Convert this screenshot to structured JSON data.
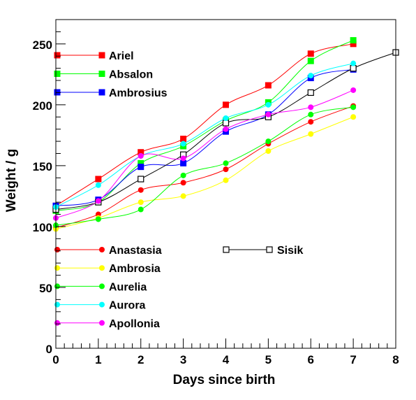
{
  "chart_data": {
    "type": "line",
    "xlabel": "Days since birth",
    "ylabel": "Weight / g",
    "xlim": [
      0,
      8
    ],
    "ylim": [
      0,
      270
    ],
    "x_ticks": [
      0,
      1,
      2,
      3,
      4,
      5,
      6,
      7,
      8
    ],
    "y_ticks": [
      0,
      50,
      100,
      150,
      200,
      250
    ],
    "grid": false,
    "curves": "smooth",
    "legends": [
      {
        "placement": "upper-left",
        "entries": [
          "Ariel",
          "Absalon",
          "Ambrosius"
        ]
      },
      {
        "placement": "lower-left",
        "entries": [
          "Anastasia",
          "Ambrosia",
          "Aurelia",
          "Aurora",
          "Apollonia"
        ]
      },
      {
        "placement": "lower-center",
        "entries": [
          "Sisik"
        ]
      }
    ],
    "series": [
      {
        "name": "Ariel",
        "color": "#ff0000",
        "marker": "square",
        "x": [
          0,
          1,
          2,
          3,
          4,
          5,
          6,
          7
        ],
        "values": [
          117,
          139,
          161,
          172,
          200,
          216,
          242,
          250
        ]
      },
      {
        "name": "Absalon",
        "color": "#00ff00",
        "marker": "square",
        "x": [
          0,
          1,
          2,
          3,
          4,
          5,
          6,
          7
        ],
        "values": [
          113,
          120,
          152,
          166,
          187,
          202,
          236,
          253
        ]
      },
      {
        "name": "Ambrosius",
        "color": "#0000ff",
        "marker": "square",
        "x": [
          0,
          1,
          2,
          3,
          4,
          5,
          6,
          7
        ],
        "values": [
          117,
          122,
          149,
          152,
          178,
          192,
          222,
          229
        ]
      },
      {
        "name": "Sisik",
        "color": "#000000",
        "marker": "open-square",
        "x": [
          0,
          1,
          2,
          3,
          4,
          5,
          6,
          7,
          8
        ],
        "values": [
          114,
          120,
          139,
          159,
          185,
          190,
          210,
          230,
          243
        ]
      },
      {
        "name": "Anastasia",
        "color": "#ff0000",
        "marker": "circle",
        "x": [
          0,
          1,
          2,
          3,
          4,
          5,
          6,
          7
        ],
        "values": [
          99,
          110,
          130,
          136,
          147,
          168,
          186,
          199
        ]
      },
      {
        "name": "Ambrosia",
        "color": "#ffff00",
        "marker": "circle",
        "x": [
          0,
          1,
          2,
          3,
          4,
          5,
          6,
          7
        ],
        "values": [
          98,
          107,
          120,
          125,
          138,
          162,
          176,
          190
        ]
      },
      {
        "name": "Aurelia",
        "color": "#00ff00",
        "marker": "circle",
        "x": [
          0,
          1,
          2,
          3,
          4,
          5,
          6,
          7
        ],
        "values": [
          101,
          106,
          114,
          142,
          152,
          170,
          192,
          198
        ]
      },
      {
        "name": "Aurora",
        "color": "#00ffff",
        "marker": "circle",
        "x": [
          0,
          1,
          2,
          3,
          4,
          5,
          6,
          7
        ],
        "values": [
          116,
          134,
          158,
          168,
          189,
          200,
          224,
          234
        ]
      },
      {
        "name": "Apollonia",
        "color": "#ff00ff",
        "marker": "circle",
        "x": [
          0,
          1,
          2,
          3,
          4,
          5,
          6,
          7
        ],
        "values": [
          107,
          121,
          158,
          156,
          180,
          192,
          198,
          212
        ]
      }
    ]
  }
}
